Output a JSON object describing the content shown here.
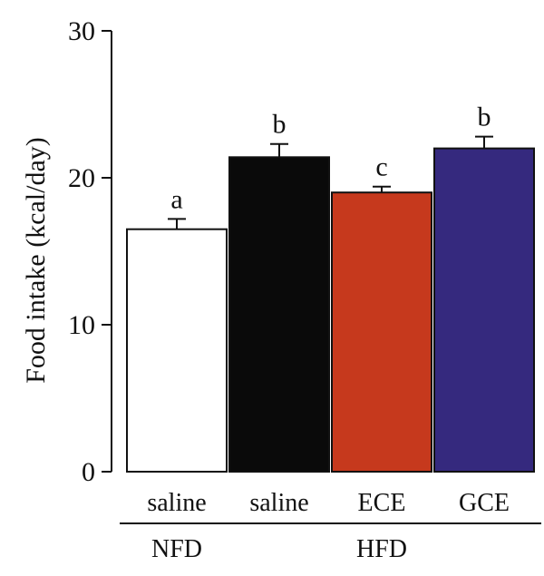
{
  "chart_data": {
    "type": "bar",
    "title": "",
    "ylabel": "Food intake (kcal/day)",
    "xlabel": "",
    "ylim": [
      0,
      30
    ],
    "yticks": [
      0,
      10,
      20,
      30
    ],
    "grid": false,
    "categories": [
      "saline",
      "saline",
      "ECE",
      "GCE"
    ],
    "values": [
      16.5,
      21.4,
      19.0,
      22.0
    ],
    "errors": [
      0.7,
      0.9,
      0.4,
      0.8
    ],
    "significance": [
      "a",
      "b",
      "c",
      "b"
    ],
    "colors": [
      "#ffffff",
      "#0a0a0a",
      "#c6391d",
      "#35297e"
    ],
    "groups": [
      {
        "label": "NFD",
        "categories": [
          0
        ]
      },
      {
        "label": "HFD",
        "categories": [
          1,
          2,
          3
        ]
      }
    ]
  }
}
